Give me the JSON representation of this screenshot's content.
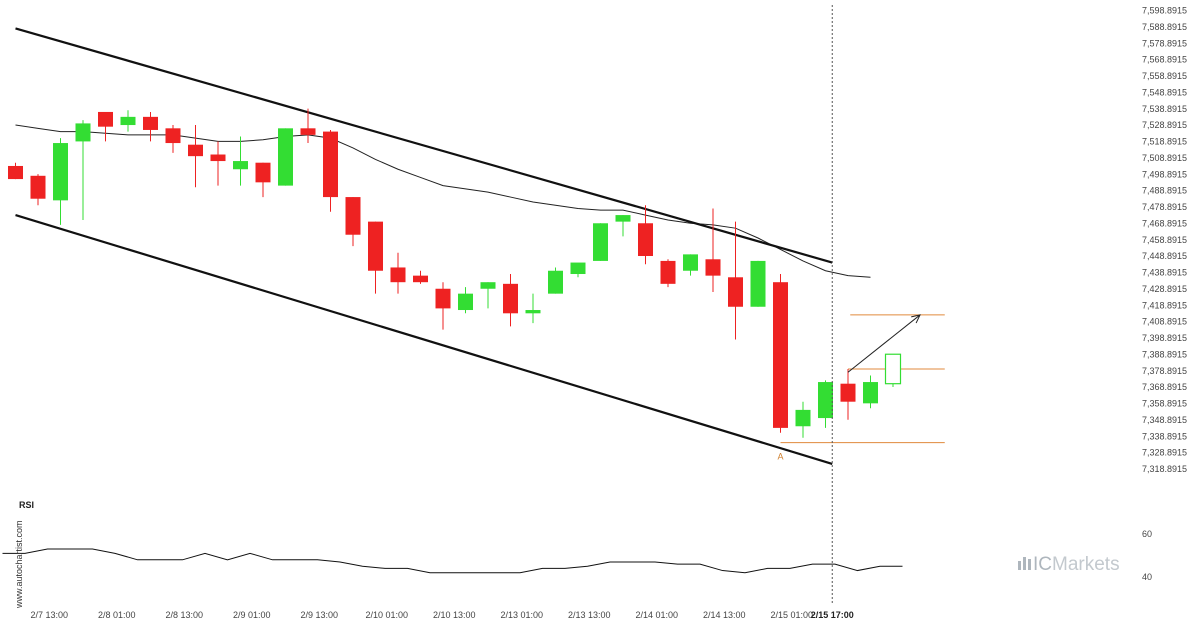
{
  "watermark": "www.autochartist.com",
  "logo": {
    "prefix": "IC",
    "suffix": "Markets",
    "icon": "bars-icon"
  },
  "colors": {
    "up": "#33dd33",
    "down": "#ee2222",
    "channel": "#111111",
    "ma": "#222222",
    "level": "#e08a3c",
    "forecast": "#222222",
    "cursor": "#555555",
    "last_candle": "#33dd33"
  },
  "chart_data": [
    {
      "type": "candlestick",
      "title": "",
      "y_ticks": [
        7318.8915,
        7328.8915,
        7338.8915,
        7348.8915,
        7358.8915,
        7368.8915,
        7378.8915,
        7388.8915,
        7398.8915,
        7408.8915,
        7418.8915,
        7428.8915,
        7438.8915,
        7448.8915,
        7458.8915,
        7468.8915,
        7478.8915,
        7488.8915,
        7498.8915,
        7508.8915,
        7518.8915,
        7528.8915,
        7538.8915,
        7548.8915,
        7558.8915,
        7568.8915,
        7578.8915,
        7588.8915,
        7598.8915
      ],
      "y_tick_labels": [
        "7,318.8915",
        "7,328.8915",
        "7,338.8915",
        "7,348.8915",
        "7,358.8915",
        "7,368.8915",
        "7,378.8915",
        "7,388.8915",
        "7,398.8915",
        "7,408.8915",
        "7,418.8915",
        "7,428.8915",
        "7,438.8915",
        "7,448.8915",
        "7,458.8915",
        "7,468.8915",
        "7,478.8915",
        "7,488.8915",
        "7,498.8915",
        "7,508.8915",
        "7,518.8915",
        "7,528.8915",
        "7,538.8915",
        "7,548.8915",
        "7,558.8915",
        "7,568.8915",
        "7,578.8915",
        "7,588.8915",
        "7,598.8915"
      ],
      "ylim": [
        7314.0,
        7600.5
      ],
      "x_tick_labels": [
        "2/7 13:00",
        "2/8 01:00",
        "2/8 13:00",
        "2/9 01:00",
        "2/9 13:00",
        "2/10 01:00",
        "2/10 13:00",
        "2/13 01:00",
        "2/13 13:00",
        "2/14 01:00",
        "2/14 13:00",
        "2/15 01:00",
        "2/15 17:00"
      ],
      "x_tick_index": [
        1.5,
        4.5,
        7.5,
        10.5,
        13.5,
        16.5,
        19.5,
        22.5,
        25.5,
        28.5,
        31.5,
        34.5,
        36.3
      ],
      "highlight_x_label": "2/15 17:00",
      "candles": [
        {
          "o": 7504,
          "h": 7506,
          "l": 7496,
          "c": 7496
        },
        {
          "o": 7498,
          "h": 7499,
          "l": 7480,
          "c": 7484
        },
        {
          "o": 7483,
          "h": 7521,
          "l": 7468,
          "c": 7518
        },
        {
          "o": 7519,
          "h": 7532,
          "l": 7471,
          "c": 7530
        },
        {
          "o": 7537,
          "h": 7537,
          "l": 7519,
          "c": 7528
        },
        {
          "o": 7529,
          "h": 7538,
          "l": 7525,
          "c": 7534
        },
        {
          "o": 7534,
          "h": 7537,
          "l": 7519,
          "c": 7526
        },
        {
          "o": 7527,
          "h": 7529,
          "l": 7512,
          "c": 7518
        },
        {
          "o": 7517,
          "h": 7529,
          "l": 7491,
          "c": 7510
        },
        {
          "o": 7511,
          "h": 7519,
          "l": 7492,
          "c": 7507
        },
        {
          "o": 7502,
          "h": 7522,
          "l": 7492,
          "c": 7507
        },
        {
          "o": 7506,
          "h": 7506,
          "l": 7485,
          "c": 7494
        },
        {
          "o": 7492,
          "h": 7527,
          "l": 7492,
          "c": 7527
        },
        {
          "o": 7527,
          "h": 7539,
          "l": 7518,
          "c": 7523
        },
        {
          "o": 7525,
          "h": 7526,
          "l": 7476,
          "c": 7485
        },
        {
          "o": 7485,
          "h": 7485,
          "l": 7455,
          "c": 7462
        },
        {
          "o": 7470,
          "h": 7470,
          "l": 7426,
          "c": 7440
        },
        {
          "o": 7442,
          "h": 7451,
          "l": 7426,
          "c": 7433
        },
        {
          "o": 7437,
          "h": 7440,
          "l": 7432,
          "c": 7433
        },
        {
          "o": 7429,
          "h": 7433,
          "l": 7404,
          "c": 7417
        },
        {
          "o": 7416,
          "h": 7430,
          "l": 7414,
          "c": 7426
        },
        {
          "o": 7429,
          "h": 7433,
          "l": 7417,
          "c": 7433
        },
        {
          "o": 7432,
          "h": 7438,
          "l": 7406,
          "c": 7414
        },
        {
          "o": 7414,
          "h": 7426,
          "l": 7408,
          "c": 7416
        },
        {
          "o": 7426,
          "h": 7442,
          "l": 7426,
          "c": 7440
        },
        {
          "o": 7438,
          "h": 7444,
          "l": 7436,
          "c": 7445
        },
        {
          "o": 7446,
          "h": 7469,
          "l": 7446,
          "c": 7469
        },
        {
          "o": 7470,
          "h": 7474,
          "l": 7461,
          "c": 7474
        },
        {
          "o": 7469,
          "h": 7480,
          "l": 7444,
          "c": 7449
        },
        {
          "o": 7446,
          "h": 7447,
          "l": 7430,
          "c": 7432
        },
        {
          "o": 7440,
          "h": 7450,
          "l": 7437,
          "c": 7450
        },
        {
          "o": 7447,
          "h": 7478,
          "l": 7427,
          "c": 7437
        },
        {
          "o": 7436,
          "h": 7470,
          "l": 7398,
          "c": 7418
        },
        {
          "o": 7418,
          "h": 7446,
          "l": 7418,
          "c": 7446
        },
        {
          "o": 7433,
          "h": 7438,
          "l": 7341,
          "c": 7344
        },
        {
          "o": 7345,
          "h": 7360,
          "l": 7338,
          "c": 7355
        },
        {
          "o": 7350,
          "h": 7373,
          "l": 7344,
          "c": 7372
        },
        {
          "o": 7371,
          "h": 7380,
          "l": 7349,
          "c": 7360
        },
        {
          "o": 7359,
          "h": 7376,
          "l": 7356,
          "c": 7372
        }
      ],
      "last_candle": {
        "o": 7371,
        "h": 7389,
        "l": 7369,
        "c": 7389
      },
      "moving_average": [
        7529,
        7527,
        7525,
        7525,
        7524,
        7523,
        7523,
        7523,
        7521,
        7519,
        7519,
        7520,
        7522,
        7523,
        7521,
        7515,
        7508,
        7502,
        7497,
        7492,
        7490,
        7488,
        7485,
        7482,
        7480,
        7478,
        7477,
        7477,
        7474,
        7471,
        7469,
        7468,
        7466,
        7460,
        7453,
        7446,
        7440,
        7437,
        7436
      ],
      "channel_upper": [
        {
          "x": 0,
          "y": 7588
        },
        {
          "x": 36.3,
          "y": 7445
        }
      ],
      "channel_lower": [
        {
          "x": 0,
          "y": 7474
        },
        {
          "x": 36.3,
          "y": 7322
        }
      ],
      "horizontal_levels": [
        {
          "y": 7335,
          "x_start": 34.0,
          "x_end": 41.3
        },
        {
          "y": 7380,
          "x_start": 37.0,
          "x_end": 41.3
        },
        {
          "y": 7413,
          "x_start": 37.1,
          "x_end": 41.3
        }
      ],
      "forecast_arrow": {
        "from": {
          "x": 37.0,
          "y": 7378
        },
        "to": {
          "x": 40.2,
          "y": 7413
        }
      },
      "pattern_point": {
        "x": 34.0,
        "y": 7334,
        "label": "A"
      },
      "cursor_x": 36.3
    },
    {
      "type": "line",
      "title": "RSI",
      "y_ticks": [
        40,
        60
      ],
      "ylim": [
        30,
        70
      ],
      "values": [
        51,
        51,
        53,
        53,
        53,
        51,
        48,
        48,
        48,
        51,
        48,
        51,
        48,
        48,
        48,
        47,
        45,
        44,
        44,
        42,
        42,
        42,
        42,
        42,
        44,
        44,
        45,
        47,
        47,
        47,
        46,
        46,
        43,
        42,
        44,
        44,
        46,
        46,
        43,
        45,
        45
      ]
    }
  ]
}
